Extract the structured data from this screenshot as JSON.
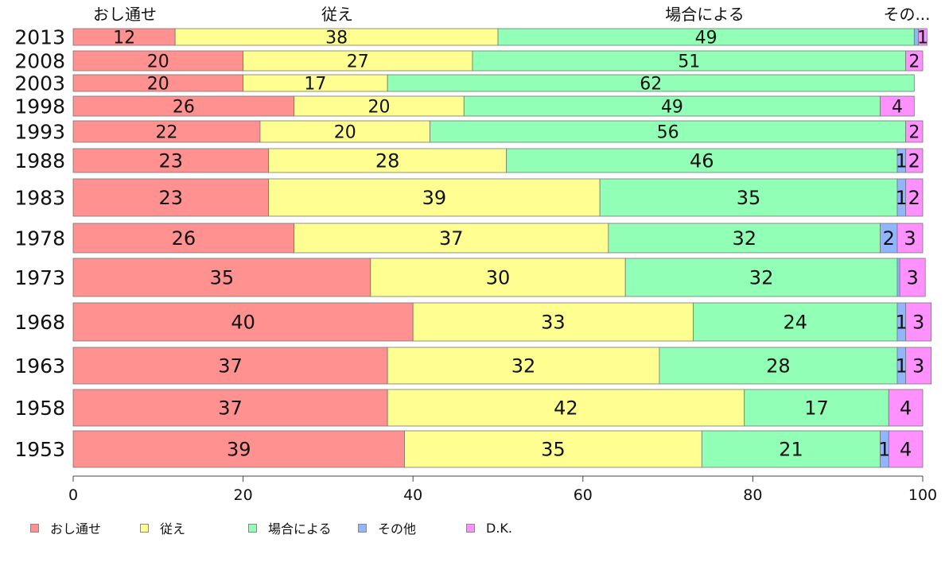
{
  "chart_data": {
    "type": "bar",
    "orientation": "horizontal",
    "stacked": true,
    "xlim": [
      0,
      100
    ],
    "x_ticks": [
      "0",
      "20",
      "40",
      "60",
      "80",
      "100"
    ],
    "categories": [
      "2013",
      "2008",
      "2003",
      "1998",
      "1993",
      "1988",
      "1983",
      "1978",
      "1973",
      "1968",
      "1963",
      "1958",
      "1953"
    ],
    "series": [
      {
        "name": "おし通せ",
        "color": "#ff9191",
        "top_label": "おし通せ",
        "values": [
          12,
          20,
          20,
          26,
          22,
          23,
          23,
          26,
          35,
          40,
          37,
          37,
          39
        ]
      },
      {
        "name": "従え",
        "color": "#ffff91",
        "top_label": "従え",
        "values": [
          38,
          27,
          17,
          20,
          20,
          28,
          39,
          37,
          30,
          33,
          32,
          42,
          35
        ]
      },
      {
        "name": "場合による",
        "color": "#91ffb5",
        "top_label": "場合による",
        "values": [
          49,
          51,
          62,
          49,
          56,
          46,
          35,
          32,
          32,
          24,
          28,
          17,
          21
        ]
      },
      {
        "name": "その他",
        "color": "#91b5ff",
        "top_label": "その...",
        "values": [
          0.5,
          0,
          0,
          0,
          0,
          1,
          1,
          2,
          0.3,
          1,
          1,
          0,
          1
        ]
      },
      {
        "name": "D.K.",
        "color": "#ff91ff",
        "top_label": "",
        "values": [
          1,
          2,
          0,
          4,
          2,
          2,
          2,
          3,
          3,
          3,
          3,
          4,
          4
        ]
      }
    ],
    "data_labels": [
      [
        "12",
        "38",
        "49",
        "",
        "1"
      ],
      [
        "20",
        "27",
        "51",
        "",
        "2"
      ],
      [
        "20",
        "17",
        "62",
        "",
        ""
      ],
      [
        "26",
        "20",
        "49",
        "",
        "4"
      ],
      [
        "22",
        "20",
        "56",
        "",
        "2"
      ],
      [
        "23",
        "28",
        "46",
        "1",
        "2"
      ],
      [
        "23",
        "39",
        "35",
        "1",
        "2"
      ],
      [
        "26",
        "37",
        "32",
        "2",
        "3"
      ],
      [
        "35",
        "30",
        "32",
        "",
        "3"
      ],
      [
        "40",
        "33",
        "24",
        "1",
        "3"
      ],
      [
        "37",
        "32",
        "28",
        "1",
        "3"
      ],
      [
        "37",
        "42",
        "17",
        "",
        "4"
      ],
      [
        "39",
        "35",
        "21",
        "1",
        "4"
      ]
    ],
    "legend_position": "bottom-left",
    "grid": false
  },
  "legend": {
    "items": [
      {
        "label": "おし通せ",
        "color": "#ff9191"
      },
      {
        "label": "従え",
        "color": "#ffff91"
      },
      {
        "label": "場合による",
        "color": "#91ffb5"
      },
      {
        "label": "その他",
        "color": "#91b5ff"
      },
      {
        "label": "D.K.",
        "color": "#ff91ff"
      }
    ]
  }
}
